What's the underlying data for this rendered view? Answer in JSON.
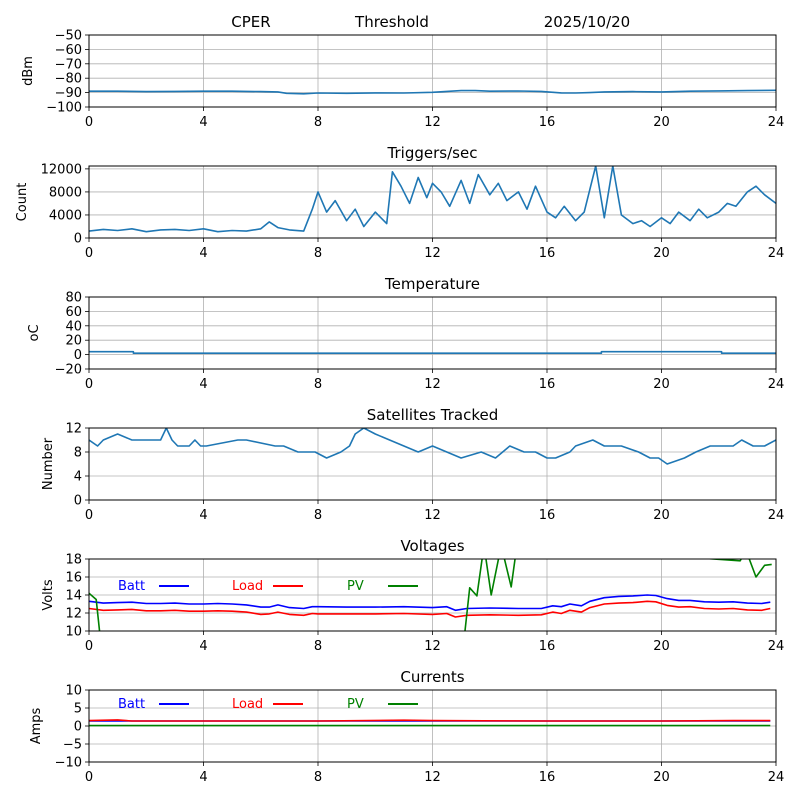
{
  "header": {
    "station": "CPER",
    "mode": "Threshold",
    "date": "2025/10/20"
  },
  "colors": {
    "series_default": "#1f77b4",
    "batt": "#0000ff",
    "load": "#ff0000",
    "pv": "#008000",
    "grid": "#b0b0b0"
  },
  "chart_data": [
    {
      "id": "threshold",
      "type": "line",
      "title": "",
      "xlabel": "",
      "ylabel": "dBm",
      "xlim": [
        0,
        24
      ],
      "ylim": [
        -100,
        -50
      ],
      "xticks": [
        0,
        4,
        8,
        12,
        16,
        20,
        24
      ],
      "yticks": [
        -100,
        -90,
        -80,
        -70,
        -60,
        -50
      ],
      "ytick_labels": [
        "−100",
        "−90",
        "−80",
        "−70",
        "−60",
        "−50"
      ],
      "grid": true,
      "series": [
        {
          "name": "Threshold",
          "color": "#1f77b4",
          "x": [
            0,
            1,
            2,
            3,
            4,
            5,
            6,
            6.6,
            6.9,
            7.5,
            8,
            9,
            10,
            11,
            12,
            12.5,
            13,
            13.5,
            14,
            15,
            15.8,
            16.5,
            17,
            17.5,
            18,
            19,
            20,
            21,
            22,
            23,
            24
          ],
          "values": [
            -89,
            -89,
            -89.3,
            -89.2,
            -89,
            -89,
            -89.3,
            -89.5,
            -90.5,
            -90.8,
            -90.3,
            -90.5,
            -90.2,
            -90.3,
            -89.8,
            -89.2,
            -88.6,
            -88.6,
            -89,
            -88.9,
            -89.2,
            -90.2,
            -90.3,
            -90,
            -89.5,
            -89.3,
            -89.5,
            -89,
            -88.8,
            -88.6,
            -88.4
          ]
        }
      ]
    },
    {
      "id": "triggers",
      "type": "line",
      "title": "Triggers/sec",
      "xlabel": "",
      "ylabel": "Count",
      "xlim": [
        0,
        24
      ],
      "ylim": [
        0,
        12500
      ],
      "xticks": [
        0,
        4,
        8,
        12,
        16,
        20,
        24
      ],
      "yticks": [
        0,
        4000,
        8000,
        12000
      ],
      "ytick_labels": [
        "0",
        "4000",
        "8000",
        "12000"
      ],
      "grid": true,
      "series": [
        {
          "name": "Triggers",
          "color": "#1f77b4",
          "x": [
            0,
            0.5,
            1,
            1.5,
            2,
            2.5,
            3,
            3.5,
            4,
            4.5,
            5,
            5.5,
            6,
            6.3,
            6.6,
            7,
            7.5,
            7.8,
            8,
            8.3,
            8.6,
            9,
            9.3,
            9.6,
            10,
            10.4,
            10.6,
            10.9,
            11.2,
            11.5,
            11.8,
            12,
            12.3,
            12.6,
            13,
            13.3,
            13.6,
            14,
            14.3,
            14.6,
            15,
            15.3,
            15.6,
            16,
            16.3,
            16.6,
            17,
            17.3,
            17.7,
            18,
            18.3,
            18.6,
            19,
            19.3,
            19.6,
            20,
            20.3,
            20.6,
            21,
            21.3,
            21.6,
            22,
            22.3,
            22.6,
            23,
            23.3,
            23.6,
            24
          ],
          "values": [
            1200,
            1500,
            1300,
            1600,
            1100,
            1400,
            1500,
            1300,
            1600,
            1100,
            1300,
            1200,
            1600,
            2800,
            1800,
            1400,
            1200,
            5000,
            8000,
            4500,
            6500,
            3000,
            5000,
            2000,
            4500,
            2500,
            11500,
            9000,
            6000,
            10500,
            7000,
            9500,
            8000,
            5500,
            10000,
            6000,
            11000,
            7500,
            9500,
            6500,
            8000,
            5000,
            9000,
            4500,
            3500,
            5500,
            3000,
            4500,
            12500,
            3500,
            12500,
            4000,
            2500,
            3000,
            2000,
            3500,
            2500,
            4500,
            3000,
            5000,
            3500,
            4500,
            6000,
            5500,
            8000,
            9000,
            7500,
            6000
          ]
        }
      ]
    },
    {
      "id": "temperature",
      "type": "line",
      "title": "Temperature",
      "xlabel": "",
      "ylabel": "°C",
      "ylabel_display": "oC",
      "xlim": [
        0,
        24
      ],
      "ylim": [
        -20,
        80
      ],
      "xticks": [
        0,
        4,
        8,
        12,
        16,
        20,
        24
      ],
      "yticks": [
        -20,
        0,
        20,
        40,
        60,
        80
      ],
      "ytick_labels": [
        "−20",
        "0",
        "20",
        "40",
        "60",
        "80"
      ],
      "grid": true,
      "series": [
        {
          "name": "Temperature",
          "color": "#1f77b4",
          "x": [
            0,
            1.55,
            1.55,
            17.9,
            17.9,
            22.1,
            22.1,
            24
          ],
          "values": [
            4,
            4,
            2,
            2,
            4,
            4,
            2,
            2
          ]
        }
      ]
    },
    {
      "id": "satellites",
      "type": "line",
      "title": "Satellites Tracked",
      "xlabel": "",
      "ylabel": "Number",
      "xlim": [
        0,
        24
      ],
      "ylim": [
        0,
        12
      ],
      "xticks": [
        0,
        4,
        8,
        12,
        16,
        20,
        24
      ],
      "yticks": [
        0,
        4,
        8,
        12
      ],
      "ytick_labels": [
        "0",
        "4",
        "8",
        "12"
      ],
      "grid": true,
      "series": [
        {
          "name": "Satellites",
          "color": "#1f77b4",
          "x": [
            0,
            0.3,
            0.5,
            1.0,
            1.5,
            2.5,
            2.7,
            2.9,
            3.1,
            3.5,
            3.7,
            3.9,
            4.1,
            5.2,
            5.5,
            6.5,
            6.8,
            7.3,
            7.9,
            8.3,
            8.8,
            9.1,
            9.3,
            9.6,
            10.0,
            10.5,
            11.0,
            11.5,
            12.0,
            12.5,
            13.0,
            13.7,
            14.2,
            14.7,
            15.2,
            15.6,
            16.0,
            16.3,
            16.8,
            17.0,
            17.6,
            18.0,
            18.6,
            19.2,
            19.6,
            19.9,
            20.2,
            20.8,
            21.2,
            21.7,
            22.5,
            22.8,
            23.2,
            23.6,
            24
          ],
          "values": [
            10,
            9,
            10,
            11,
            10,
            10,
            12,
            10,
            9,
            9,
            10,
            9,
            9,
            10,
            10,
            9,
            9,
            8,
            8,
            7,
            8,
            9,
            11,
            12,
            11,
            10,
            9,
            8,
            9,
            8,
            7,
            8,
            7,
            9,
            8,
            8,
            7,
            7,
            8,
            9,
            10,
            9,
            9,
            8,
            7,
            7,
            6,
            7,
            8,
            9,
            9,
            10,
            9,
            9,
            10
          ]
        }
      ]
    },
    {
      "id": "voltages",
      "type": "line",
      "title": "Voltages",
      "xlabel": "",
      "ylabel": "Volts",
      "xlim": [
        0,
        24
      ],
      "ylim": [
        10,
        18
      ],
      "xticks": [
        0,
        4,
        8,
        12,
        16,
        20,
        24
      ],
      "yticks": [
        10,
        12,
        14,
        16,
        18
      ],
      "ytick_labels": [
        "10",
        "12",
        "14",
        "16",
        "18"
      ],
      "grid": true,
      "legend": {
        "placement": "inside-top",
        "entries": [
          "Batt",
          "Load",
          "PV"
        ]
      },
      "series": [
        {
          "name": "Batt",
          "color": "#0000ff",
          "x": [
            0,
            0.5,
            1,
            1.5,
            2,
            2.5,
            3,
            3.5,
            4,
            4.5,
            5,
            5.5,
            6,
            6.3,
            6.6,
            7,
            7.5,
            7.8,
            8,
            9,
            10,
            11,
            12,
            12.5,
            12.8,
            13.2,
            14,
            15,
            15.8,
            16.2,
            16.5,
            16.8,
            17.2,
            17.5,
            18,
            18.5,
            19,
            19.5,
            19.8,
            20.2,
            20.6,
            21.0,
            21.5,
            22.0,
            22.5,
            23.0,
            23.5,
            23.8
          ],
          "values": [
            13.3,
            13.1,
            13.15,
            13.2,
            13.05,
            13.05,
            13.1,
            13.0,
            13.0,
            13.05,
            13.0,
            12.9,
            12.65,
            12.65,
            12.9,
            12.6,
            12.5,
            12.7,
            12.7,
            12.65,
            12.65,
            12.7,
            12.6,
            12.7,
            12.3,
            12.5,
            12.55,
            12.5,
            12.5,
            12.8,
            12.7,
            13.0,
            12.8,
            13.3,
            13.7,
            13.85,
            13.9,
            14.0,
            13.95,
            13.6,
            13.4,
            13.4,
            13.25,
            13.2,
            13.25,
            13.1,
            13.05,
            13.2
          ]
        },
        {
          "name": "Load",
          "color": "#ff0000",
          "x": [
            0,
            0.5,
            1,
            1.5,
            2,
            2.5,
            3,
            3.5,
            4,
            4.5,
            5,
            5.5,
            6,
            6.3,
            6.6,
            7,
            7.5,
            7.8,
            8,
            9,
            10,
            11,
            12,
            12.5,
            12.8,
            13.2,
            14,
            15,
            15.8,
            16.2,
            16.5,
            16.8,
            17.2,
            17.5,
            18,
            18.5,
            19,
            19.5,
            19.8,
            20.2,
            20.6,
            21.0,
            21.5,
            22.0,
            22.5,
            23.0,
            23.5,
            23.8
          ],
          "values": [
            12.5,
            12.3,
            12.35,
            12.4,
            12.25,
            12.25,
            12.3,
            12.2,
            12.2,
            12.25,
            12.2,
            12.1,
            11.85,
            11.9,
            12.1,
            11.85,
            11.75,
            11.95,
            11.9,
            11.9,
            11.9,
            11.95,
            11.85,
            11.95,
            11.55,
            11.75,
            11.8,
            11.75,
            11.8,
            12.1,
            11.95,
            12.3,
            12.1,
            12.6,
            13.0,
            13.1,
            13.15,
            13.3,
            13.25,
            12.85,
            12.65,
            12.7,
            12.5,
            12.45,
            12.5,
            12.35,
            12.3,
            12.5
          ]
        },
        {
          "name": "PV",
          "color": "#008000",
          "x": [
            0,
            0.25,
            0.4,
            13.1,
            13.3,
            13.55,
            13.8,
            14.05,
            14.4,
            14.75,
            14.95,
            22.75,
            22.95,
            23.3,
            23.6,
            23.85
          ],
          "values": [
            14.2,
            13.5,
            9.0,
            9.0,
            14.8,
            13.9,
            19.5,
            14.0,
            19.5,
            14.9,
            19.5,
            17.8,
            19.0,
            16.0,
            17.3,
            17.4
          ]
        }
      ]
    },
    {
      "id": "currents",
      "type": "line",
      "title": "Currents",
      "xlabel": "",
      "ylabel": "Amps",
      "xlim": [
        0,
        24
      ],
      "ylim": [
        -10,
        10
      ],
      "xticks": [
        0,
        4,
        8,
        12,
        16,
        20,
        24
      ],
      "yticks": [
        -10,
        -5,
        0,
        5,
        10
      ],
      "ytick_labels": [
        "−10",
        "−5",
        "0",
        "5",
        "10"
      ],
      "grid": true,
      "legend": {
        "placement": "inside-top",
        "entries": [
          "Batt",
          "Load",
          "PV"
        ]
      },
      "series": [
        {
          "name": "Batt",
          "color": "#0000ff",
          "x": [
            0,
            23.8
          ],
          "values": [
            1.4,
            1.4
          ]
        },
        {
          "name": "Load",
          "color": "#ff0000",
          "x": [
            0,
            1,
            1.5,
            4,
            8,
            11,
            12,
            16,
            20,
            22.5,
            23.8
          ],
          "values": [
            1.5,
            1.7,
            1.4,
            1.4,
            1.4,
            1.6,
            1.5,
            1.4,
            1.4,
            1.5,
            1.5
          ]
        },
        {
          "name": "PV",
          "color": "#008000",
          "x": [
            0,
            23.8
          ],
          "values": [
            0.1,
            0.1
          ]
        }
      ]
    }
  ]
}
